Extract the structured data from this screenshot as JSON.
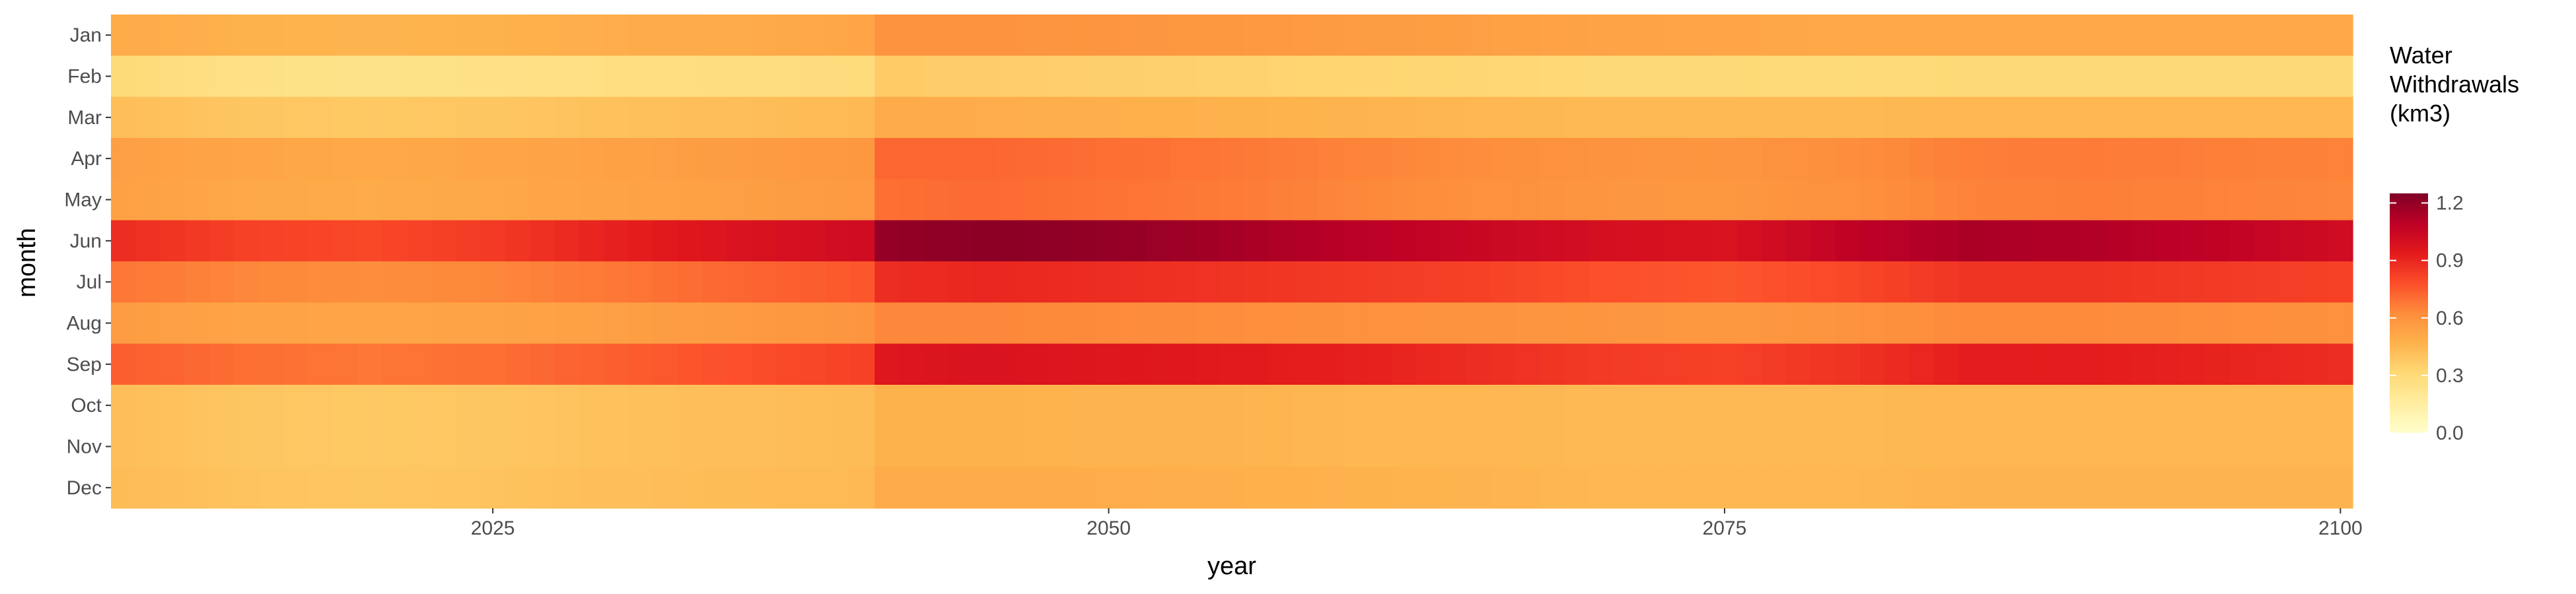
{
  "chart_data": {
    "type": "heatmap",
    "x_label": "year",
    "y_label": "month",
    "x_range": [
      2010,
      2100
    ],
    "x_ticks": [
      2025,
      2050,
      2075,
      2100
    ],
    "y_categories": [
      "Jan",
      "Feb",
      "Mar",
      "Apr",
      "May",
      "Jun",
      "Jul",
      "Aug",
      "Sep",
      "Oct",
      "Nov",
      "Dec"
    ],
    "legend": {
      "title_lines": [
        "Water",
        "Withdrawals",
        "(km3)"
      ],
      "ticks": [
        "1.2",
        "0.9",
        "0.6",
        "0.3",
        "0.0"
      ],
      "range": [
        0,
        1.25
      ],
      "colors": [
        "#ffffcc",
        "#ffeda0",
        "#fed976",
        "#feb24c",
        "#fd8d3c",
        "#fc4e2a",
        "#e31a1c",
        "#bd0026",
        "#800026"
      ]
    },
    "period_values": {
      "years": [
        2010,
        2015,
        2020,
        2025,
        2030,
        2035,
        2040,
        2041,
        2045,
        2050,
        2055,
        2060,
        2065,
        2070,
        2075,
        2080,
        2085,
        2090,
        2095,
        2100
      ],
      "Jan": [
        0.5,
        0.47,
        0.46,
        0.47,
        0.49,
        0.5,
        0.52,
        0.6,
        0.6,
        0.59,
        0.58,
        0.56,
        0.55,
        0.53,
        0.52,
        0.51,
        0.51,
        0.51,
        0.51,
        0.51
      ],
      "Feb": [
        0.3,
        0.25,
        0.24,
        0.25,
        0.27,
        0.28,
        0.29,
        0.37,
        0.36,
        0.35,
        0.34,
        0.33,
        0.32,
        0.31,
        0.31,
        0.3,
        0.31,
        0.31,
        0.31,
        0.31
      ],
      "Mar": [
        0.42,
        0.39,
        0.38,
        0.39,
        0.41,
        0.42,
        0.44,
        0.5,
        0.49,
        0.48,
        0.47,
        0.46,
        0.45,
        0.44,
        0.44,
        0.44,
        0.45,
        0.45,
        0.45,
        0.45
      ],
      "Apr": [
        0.55,
        0.52,
        0.51,
        0.52,
        0.54,
        0.56,
        0.58,
        0.72,
        0.72,
        0.7,
        0.68,
        0.65,
        0.62,
        0.6,
        0.59,
        0.62,
        0.66,
        0.67,
        0.66,
        0.65
      ],
      "May": [
        0.54,
        0.51,
        0.5,
        0.51,
        0.53,
        0.55,
        0.57,
        0.7,
        0.71,
        0.69,
        0.67,
        0.64,
        0.61,
        0.59,
        0.58,
        0.61,
        0.65,
        0.66,
        0.65,
        0.64
      ],
      "Jun": [
        0.88,
        0.82,
        0.8,
        0.84,
        0.92,
        0.98,
        1.02,
        1.2,
        1.22,
        1.2,
        1.15,
        1.1,
        1.05,
        1.0,
        0.98,
        1.08,
        1.14,
        1.12,
        1.08,
        1.02
      ],
      "Jul": [
        0.68,
        0.64,
        0.62,
        0.64,
        0.68,
        0.72,
        0.76,
        0.88,
        0.9,
        0.88,
        0.86,
        0.84,
        0.82,
        0.78,
        0.76,
        0.8,
        0.86,
        0.86,
        0.84,
        0.82
      ],
      "Aug": [
        0.56,
        0.53,
        0.52,
        0.53,
        0.55,
        0.57,
        0.59,
        0.64,
        0.64,
        0.63,
        0.62,
        0.61,
        0.6,
        0.59,
        0.58,
        0.6,
        0.63,
        0.63,
        0.62,
        0.61
      ],
      "Sep": [
        0.74,
        0.7,
        0.68,
        0.7,
        0.74,
        0.78,
        0.82,
        0.96,
        0.98,
        0.96,
        0.94,
        0.92,
        0.88,
        0.84,
        0.82,
        0.86,
        0.93,
        0.93,
        0.91,
        0.88
      ],
      "Oct": [
        0.42,
        0.39,
        0.38,
        0.39,
        0.41,
        0.42,
        0.43,
        0.47,
        0.47,
        0.46,
        0.46,
        0.45,
        0.45,
        0.44,
        0.44,
        0.44,
        0.45,
        0.45,
        0.45,
        0.45
      ],
      "Nov": [
        0.42,
        0.39,
        0.38,
        0.39,
        0.41,
        0.42,
        0.43,
        0.47,
        0.47,
        0.46,
        0.46,
        0.45,
        0.45,
        0.44,
        0.44,
        0.44,
        0.45,
        0.45,
        0.45,
        0.45
      ],
      "Dec": [
        0.43,
        0.4,
        0.39,
        0.4,
        0.42,
        0.43,
        0.44,
        0.5,
        0.5,
        0.49,
        0.48,
        0.47,
        0.46,
        0.45,
        0.45,
        0.45,
        0.46,
        0.46,
        0.46,
        0.46
      ]
    }
  }
}
